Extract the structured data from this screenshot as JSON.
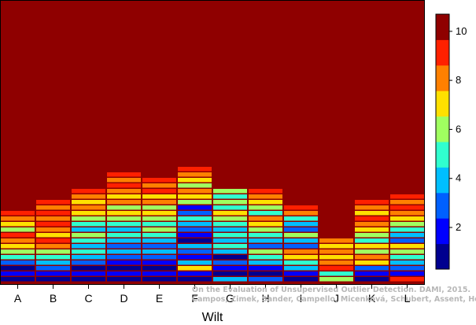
{
  "chart_data": {
    "type": "heatmap",
    "title": "",
    "xlabel": "Wilt",
    "ylabel": "",
    "categories": [
      "A",
      "B",
      "C",
      "D",
      "E",
      "F",
      "G",
      "H",
      "I",
      "J",
      "K",
      "L"
    ],
    "colorbar": {
      "min": 0.3,
      "max": 10.7,
      "ticks": [
        2,
        4,
        6,
        8,
        10
      ],
      "colors": [
        "#00008f",
        "#0000ff",
        "#0060ff",
        "#00bfff",
        "#30ffcf",
        "#a0ff60",
        "#ffe000",
        "#ff8000",
        "#ff2000",
        "#8f0000"
      ]
    },
    "columns": [
      {
        "name": "A",
        "values": [
          1,
          2,
          1,
          3,
          5,
          6,
          7,
          8,
          9,
          6,
          7,
          8,
          9
        ]
      },
      {
        "name": "B",
        "values": [
          1,
          2,
          3,
          4,
          5,
          6,
          8,
          9,
          7,
          8,
          9,
          8,
          9,
          8,
          9
        ]
      },
      {
        "name": "C",
        "values": [
          1,
          2,
          1,
          3,
          4,
          5,
          4,
          5,
          6,
          4,
          5,
          6,
          7,
          8,
          7,
          8,
          9
        ]
      },
      {
        "name": "D",
        "values": [
          1,
          2,
          1,
          2,
          3,
          4,
          3,
          4,
          5,
          4,
          5,
          6,
          7,
          6,
          8,
          7,
          8,
          9,
          8,
          9
        ]
      },
      {
        "name": "E",
        "values": [
          1,
          2,
          1,
          2,
          3,
          4,
          3,
          4,
          5,
          6,
          5,
          6,
          7,
          6,
          8,
          7,
          9,
          8,
          9
        ]
      },
      {
        "name": "F",
        "values": [
          1,
          2,
          7,
          4,
          2,
          3,
          4,
          1,
          2,
          3,
          4,
          5,
          3,
          2,
          6,
          7,
          8,
          6,
          7,
          8,
          9
        ]
      },
      {
        "name": "G",
        "values": [
          4,
          1,
          2,
          3,
          1,
          4,
          5,
          4,
          5,
          4,
          5,
          6,
          7,
          5,
          6,
          5,
          6
        ]
      },
      {
        "name": "H",
        "values": [
          3,
          1,
          2,
          4,
          5,
          6,
          3,
          4,
          5,
          6,
          7,
          8,
          5,
          6,
          7,
          8,
          9
        ]
      },
      {
        "name": "I",
        "values": [
          1,
          2,
          4,
          5,
          7,
          8,
          3,
          4,
          6,
          3,
          4,
          5,
          8,
          9
        ]
      },
      {
        "name": "J",
        "values": [
          6,
          5,
          9,
          8,
          7,
          8,
          7,
          8
        ]
      },
      {
        "name": "K",
        "values": [
          1,
          2,
          3,
          7,
          8,
          6,
          7,
          5,
          6,
          7,
          8,
          9,
          7,
          8,
          9
        ]
      },
      {
        "name": "L",
        "values": [
          9,
          2,
          3,
          4,
          5,
          6,
          7,
          3,
          4,
          5,
          6,
          7,
          8,
          9,
          8,
          9
        ]
      }
    ]
  },
  "watermark": {
    "line1": "On the Evaluation of Unsupervised Outlier Detection. DAMI, 2015.",
    "line2": "Campos, Zimek, Sander, Campello, Micenková, Schubert, Assent, Houle"
  }
}
